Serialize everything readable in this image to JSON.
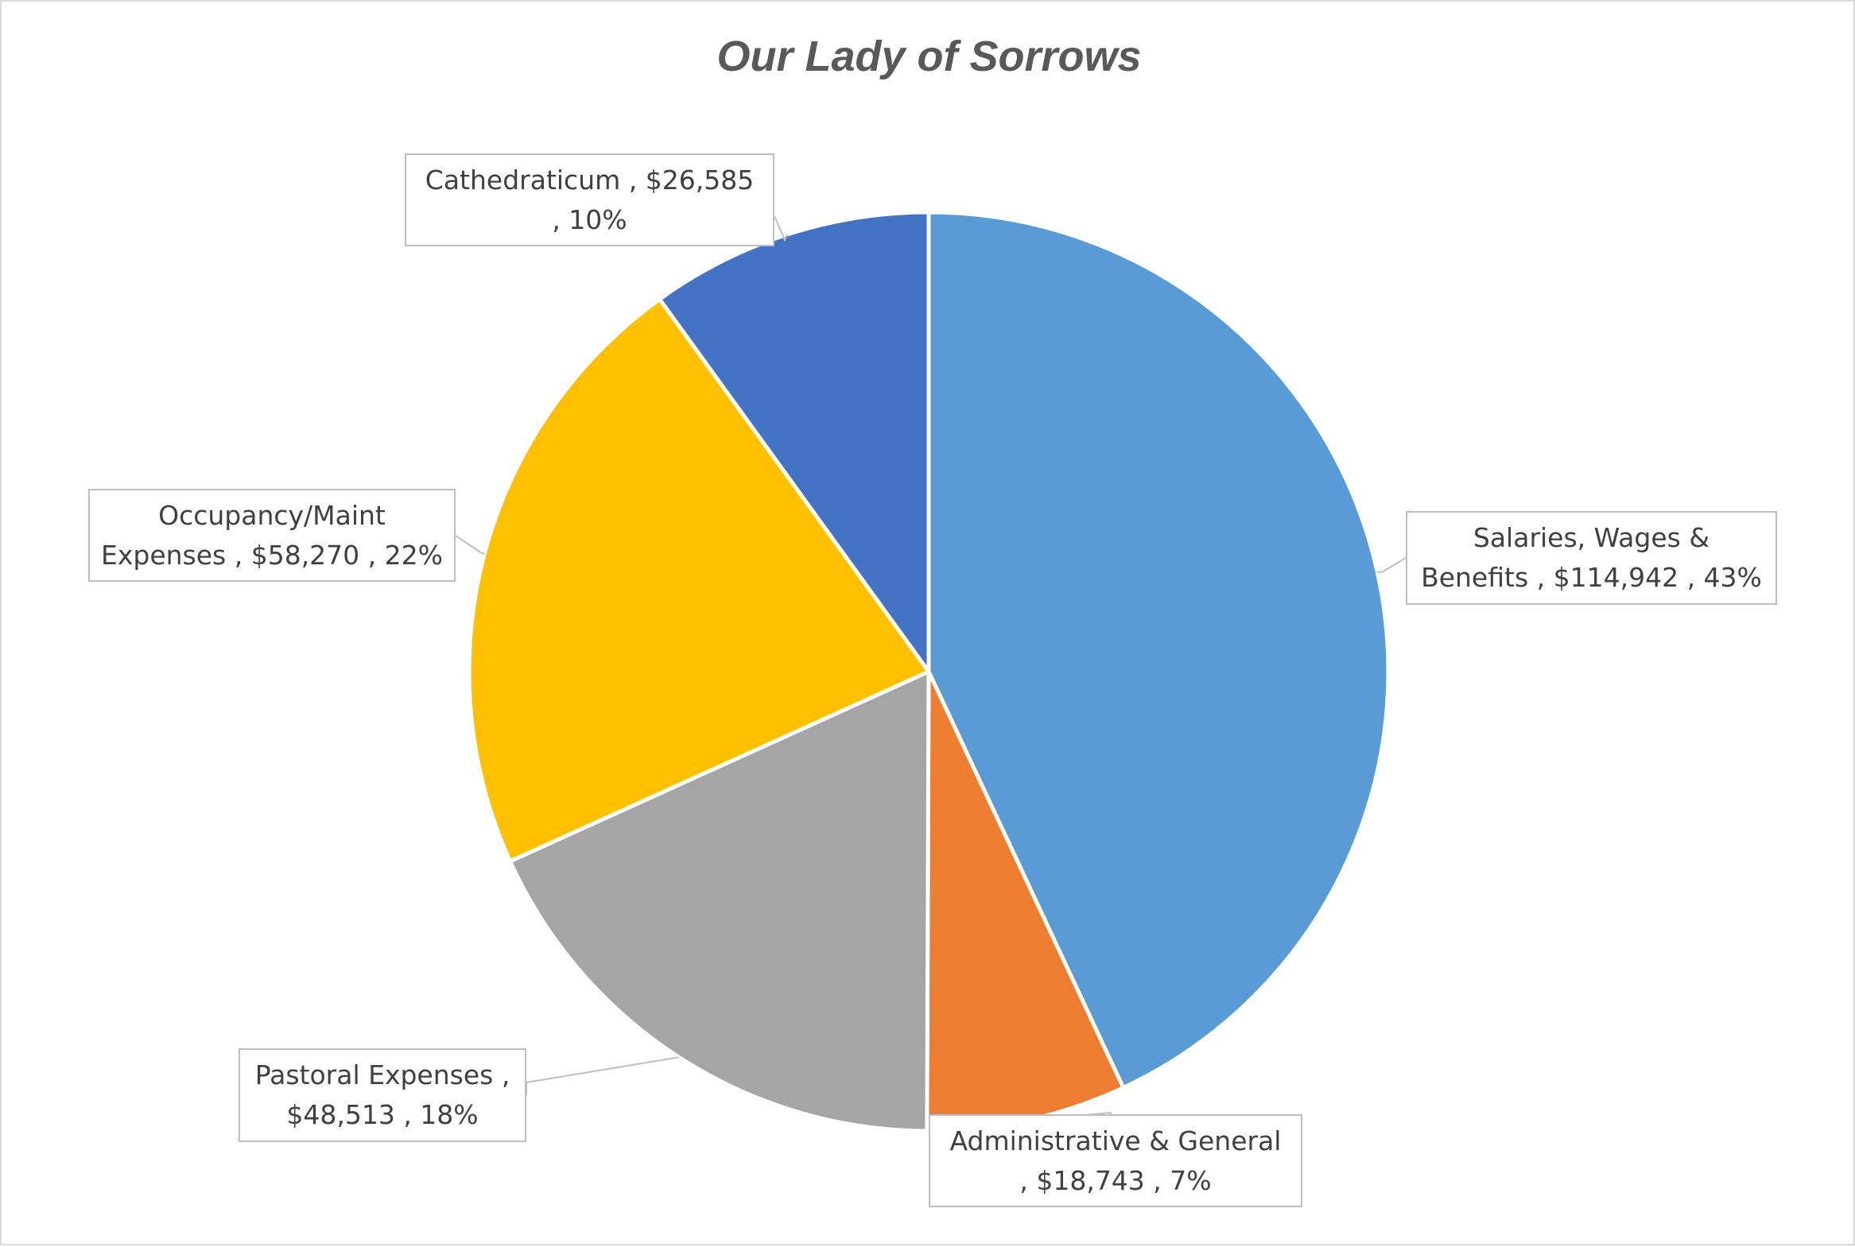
{
  "chart_data": {
    "type": "pie",
    "title": "Our Lady of Sorrows",
    "slices": [
      {
        "category": "Salaries, Wages & Benefits",
        "value": 114942,
        "value_label": "$114,942",
        "percent_label": "43%",
        "color": "#5b9bd5"
      },
      {
        "category": "Administrative & General",
        "value": 18743,
        "value_label": "$18,743",
        "percent_label": "7%",
        "color": "#ed7d31"
      },
      {
        "category": "Pastoral Expenses",
        "value": 48513,
        "value_label": "$48,513",
        "percent_label": "18%",
        "color": "#a5a5a5"
      },
      {
        "category": "Occupancy/Maint Expenses",
        "value": 58270,
        "value_label": "$58,270",
        "percent_label": "22%",
        "color": "#ffc000"
      },
      {
        "category": "Cathedraticum",
        "value": 26585,
        "value_label": "$26,585",
        "percent_label": "10%",
        "color": "#4472c4"
      }
    ],
    "labels": [
      {
        "line1": "Salaries, Wages &",
        "line2": "Benefits ,  $114,942 , 43%"
      },
      {
        "line1": "Administrative & General",
        "line2": ",  $18,743 , 7%"
      },
      {
        "line1": "Pastoral Expenses ,",
        "line2": "$48,513 , 18%"
      },
      {
        "line1": "Occupancy/Maint",
        "line2": "Expenses ,  $58,270 , 22%"
      },
      {
        "line1": "Cathedraticum ,  $26,585",
        "line2": ", 10%"
      }
    ],
    "start_angle": "12 o'clock",
    "direction": "clockwise",
    "legend": "none"
  }
}
